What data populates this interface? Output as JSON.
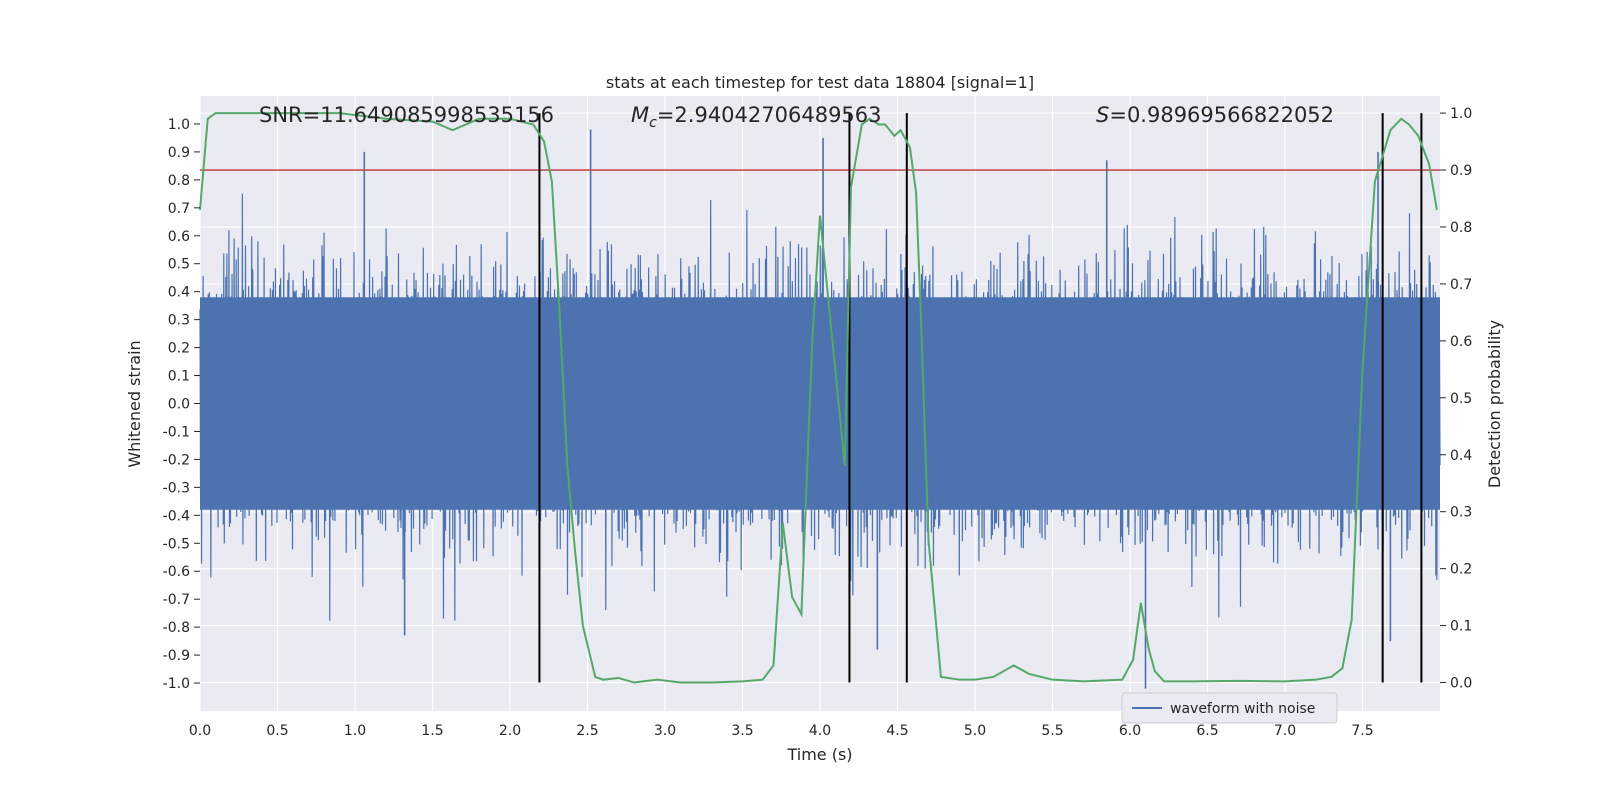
{
  "chart_data": {
    "type": "line",
    "title": "stats at each timestep for test data 18804 [signal=1]",
    "xlabel": "Time (s)",
    "ylabel_left": "Whitened strain",
    "ylabel_right": "Detection probability",
    "xlim": [
      0,
      8
    ],
    "ylim_left": [
      -1.1,
      1.1
    ],
    "ylim_right": [
      -0.05,
      1.03
    ],
    "x_ticks": [
      "0.0",
      "0.5",
      "1.0",
      "1.5",
      "2.0",
      "2.5",
      "3.0",
      "3.5",
      "4.0",
      "4.5",
      "5.0",
      "5.5",
      "6.0",
      "6.5",
      "7.0",
      "7.5"
    ],
    "y_left_ticks": [
      "1.0",
      "0.9",
      "0.8",
      "0.7",
      "0.6",
      "0.5",
      "0.4",
      "0.3",
      "0.2",
      "0.1",
      "0.0",
      "-0.1",
      "-0.2",
      "-0.3",
      "-0.4",
      "-0.5",
      "-0.6",
      "-0.7",
      "-0.8",
      "-0.9",
      "-1.0"
    ],
    "y_right_ticks": [
      "1.0",
      "0.9",
      "0.8",
      "0.7",
      "0.6",
      "0.5",
      "0.4",
      "0.3",
      "0.2",
      "0.1",
      "0.0"
    ],
    "threshold": 0.9,
    "vlines": [
      2.19,
      4.19,
      4.56,
      7.63,
      7.88
    ],
    "annotations": [
      {
        "x": 0.2,
        "text": "SNR=11.649085998535156"
      },
      {
        "x": 2.6,
        "prefix": "M",
        "sub": "c",
        "text": "=2.94042706489563"
      },
      {
        "x": 5.6,
        "prefix": "S",
        "text": "=0.98969566822052"
      }
    ],
    "legend": {
      "position": "lower-center",
      "entries": [
        "waveform with noise"
      ]
    },
    "grid": true,
    "series": [
      {
        "name": "waveform with noise",
        "color": "#4c72b0",
        "axis": "left",
        "style": "noise-band",
        "samples": 8192,
        "core_amplitude": 0.38,
        "peak_extremes": [
          {
            "x": 1.06,
            "y": 0.9
          },
          {
            "x": 2.52,
            "y": 0.98
          },
          {
            "x": 4.02,
            "y": 0.95
          },
          {
            "x": 5.85,
            "y": 0.87
          },
          {
            "x": 7.6,
            "y": 0.9
          },
          {
            "x": 6.1,
            "y": -1.02
          },
          {
            "x": 4.37,
            "y": -0.88
          },
          {
            "x": 1.32,
            "y": -0.83
          },
          {
            "x": 7.68,
            "y": -0.85
          }
        ]
      },
      {
        "name": "",
        "color": "#55a868",
        "axis": "right",
        "x": [
          0,
          0.05,
          0.1,
          0.3,
          0.6,
          0.9,
          1.2,
          1.5,
          1.63,
          1.8,
          2.0,
          2.15,
          2.22,
          2.27,
          2.32,
          2.37,
          2.42,
          2.47,
          2.55,
          2.6,
          2.7,
          2.8,
          2.95,
          3.1,
          3.3,
          3.5,
          3.63,
          3.7,
          3.76,
          3.82,
          3.88,
          3.95,
          4.0,
          4.08,
          4.16,
          4.2,
          4.27,
          4.32,
          4.38,
          4.42,
          4.48,
          4.52,
          4.58,
          4.62,
          4.65,
          4.7,
          4.78,
          4.9,
          5.0,
          5.12,
          5.25,
          5.35,
          5.5,
          5.7,
          5.95,
          6.02,
          6.07,
          6.12,
          6.16,
          6.22,
          6.4,
          6.7,
          7.0,
          7.2,
          7.3,
          7.37,
          7.43,
          7.5,
          7.58,
          7.68,
          7.75,
          7.8,
          7.86,
          7.93,
          7.98
        ],
        "y": [
          0.83,
          0.99,
          1.0,
          1.0,
          1.0,
          1.0,
          0.99,
          0.985,
          0.97,
          0.99,
          0.99,
          0.98,
          0.95,
          0.88,
          0.65,
          0.38,
          0.23,
          0.1,
          0.01,
          0.005,
          0.008,
          0.0,
          0.005,
          0.0,
          0.0,
          0.002,
          0.005,
          0.03,
          0.28,
          0.15,
          0.12,
          0.6,
          0.82,
          0.6,
          0.38,
          0.87,
          0.98,
          0.99,
          0.98,
          0.98,
          0.96,
          0.97,
          0.94,
          0.86,
          0.65,
          0.25,
          0.01,
          0.005,
          0.005,
          0.01,
          0.03,
          0.015,
          0.005,
          0.002,
          0.005,
          0.04,
          0.14,
          0.06,
          0.02,
          0.002,
          0.002,
          0.003,
          0.002,
          0.005,
          0.01,
          0.025,
          0.11,
          0.55,
          0.88,
          0.97,
          0.99,
          0.98,
          0.96,
          0.91,
          0.83
        ]
      }
    ]
  }
}
